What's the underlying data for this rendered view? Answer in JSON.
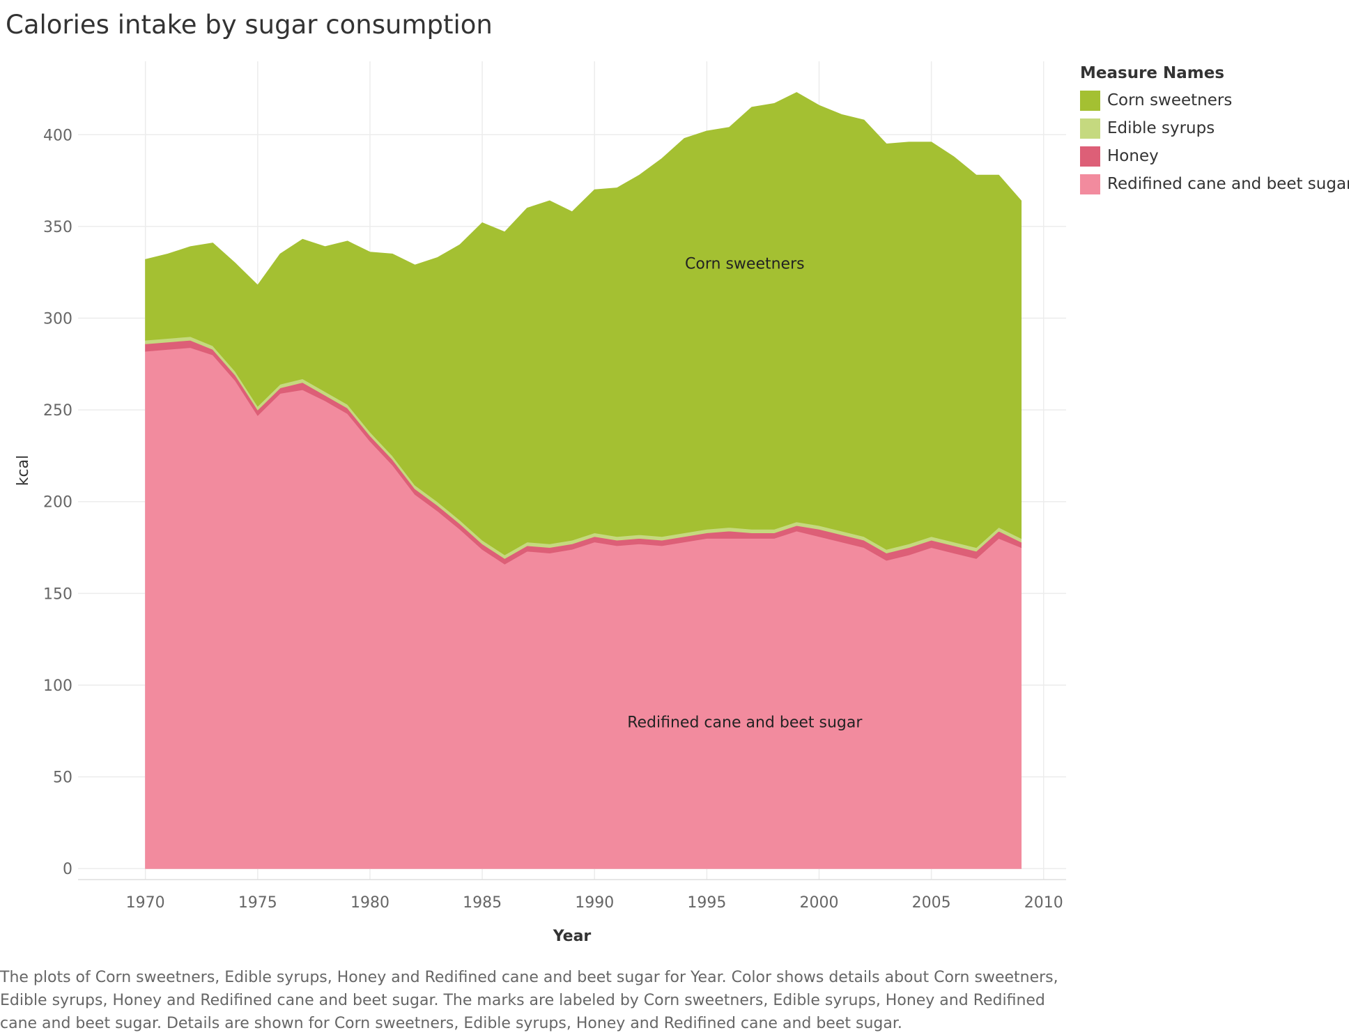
{
  "chart_data": {
    "type": "area",
    "stacked": true,
    "title": "Calories intake by sugar consumption",
    "xlabel": "Year",
    "ylabel": "kcal",
    "xlim": [
      1967,
      2011
    ],
    "ylim": [
      -6,
      440
    ],
    "x_ticks": [
      1970,
      1975,
      1980,
      1985,
      1990,
      1995,
      2000,
      2005,
      2010
    ],
    "y_ticks": [
      0,
      50,
      100,
      150,
      200,
      250,
      300,
      350,
      400
    ],
    "grid": true,
    "legend_title": "Measure Names",
    "legend_position": "right",
    "x": [
      1970,
      1971,
      1972,
      1973,
      1974,
      1975,
      1976,
      1977,
      1978,
      1979,
      1980,
      1981,
      1982,
      1983,
      1984,
      1985,
      1986,
      1987,
      1988,
      1989,
      1990,
      1991,
      1992,
      1993,
      1994,
      1995,
      1996,
      1997,
      1998,
      1999,
      2000,
      2001,
      2002,
      2003,
      2004,
      2005,
      2006,
      2007,
      2008,
      2009
    ],
    "series": [
      {
        "name": "Redifined cane and beet sugar",
        "color": "#f28b9e",
        "values": [
          282,
          283,
          284,
          280,
          266,
          247,
          259,
          261,
          255,
          248,
          233,
          220,
          204,
          195,
          185,
          174,
          166,
          173,
          172,
          174,
          178,
          176,
          177,
          176,
          178,
          180,
          180,
          180,
          180,
          184,
          181,
          178,
          175,
          168,
          171,
          175,
          172,
          169,
          180,
          175
        ]
      },
      {
        "name": "Honey",
        "color": "#dd5f77",
        "values": [
          4,
          4,
          4,
          3,
          3,
          3,
          3,
          4,
          3,
          3,
          3,
          3,
          3,
          3,
          3,
          3,
          3,
          3,
          3,
          3,
          3,
          3,
          3,
          3,
          3,
          3,
          4,
          3,
          3,
          3,
          4,
          4,
          4,
          4,
          4,
          4,
          4,
          4,
          4,
          3
        ]
      },
      {
        "name": "Edible syrups",
        "color": "#c5d97f",
        "values": [
          2,
          2,
          2,
          2,
          2,
          2,
          2,
          2,
          2,
          2,
          2,
          2,
          2,
          2,
          2,
          2,
          2,
          2,
          2,
          2,
          2,
          2,
          2,
          2,
          2,
          2,
          2,
          2,
          2,
          2,
          2,
          2,
          2,
          2,
          2,
          2,
          2,
          2,
          2,
          2
        ]
      },
      {
        "name": "Corn sweetners",
        "color": "#a4c032",
        "values": [
          44,
          46,
          49,
          56,
          59,
          66,
          71,
          76,
          79,
          89,
          98,
          110,
          120,
          133,
          150,
          173,
          176,
          182,
          187,
          179,
          187,
          190,
          196,
          206,
          215,
          217,
          218,
          230,
          232,
          234,
          229,
          227,
          227,
          221,
          219,
          215,
          210,
          203,
          192,
          184
        ]
      }
    ],
    "annotations": [
      {
        "text": "Corn sweetners",
        "series": "Corn sweetners"
      },
      {
        "text": "Redifined cane and beet sugar",
        "series": "Redifined cane and beet sugar"
      }
    ]
  },
  "caption": "The plots of Corn sweetners, Edible syrups, Honey and Redifined cane and beet sugar for Year.  Color shows details about Corn sweetners, Edible syrups, Honey and Redifined cane and beet sugar.  The marks are labeled by Corn sweetners, Edible syrups, Honey and Redifined cane and beet sugar.  Details are shown for Corn sweetners, Edible syrups, Honey and Redifined cane and beet sugar."
}
